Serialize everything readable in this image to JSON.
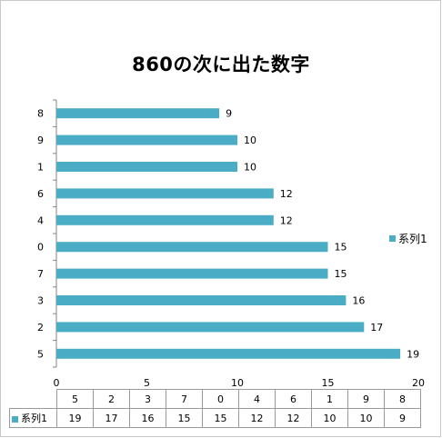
{
  "chart_data": {
    "type": "bar",
    "orientation": "horizontal",
    "title": "860の次に出た数字",
    "categories": [
      "5",
      "2",
      "3",
      "7",
      "0",
      "4",
      "6",
      "1",
      "9",
      "8"
    ],
    "series": [
      {
        "name": "系列1",
        "values": [
          19,
          17,
          16,
          15,
          15,
          12,
          12,
          10,
          10,
          9
        ],
        "color": "#4bacc6"
      }
    ],
    "xlim": [
      0,
      20
    ],
    "x_ticks": [
      "0",
      "5",
      "10",
      "15",
      "20"
    ],
    "grid": false,
    "legend_position": "right",
    "data_table": true
  }
}
